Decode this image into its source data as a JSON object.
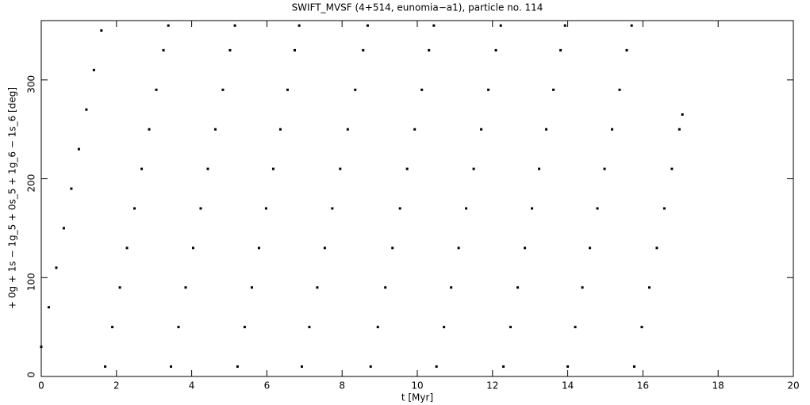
{
  "chart_data": {
    "type": "scatter",
    "title": "SWIFT_MVSF (4+514, eunomia−a1), particle no. 114",
    "x_label": "t [Myr]",
    "y_label": "+ 0g + 1s − 1g_5 + 0s_5 + 1g_6 − 1s_6 [deg]",
    "color": "#000000",
    "xlim": [
      0,
      20
    ],
    "ylim": [
      0,
      360
    ],
    "xticks": [
      0,
      2,
      4,
      6,
      8,
      10,
      12,
      14,
      16,
      18,
      20
    ],
    "yticks": [
      0,
      100,
      200,
      300
    ],
    "x": [
      0.0,
      0.2,
      0.4,
      0.6,
      0.8,
      1.0,
      1.2,
      1.4,
      1.6,
      1.7,
      1.89,
      2.09,
      2.28,
      2.48,
      2.67,
      2.87,
      3.06,
      3.25,
      3.38,
      3.45,
      3.65,
      3.84,
      4.04,
      4.24,
      4.43,
      4.63,
      4.83,
      5.02,
      5.15,
      5.22,
      5.41,
      5.6,
      5.79,
      5.98,
      6.17,
      6.36,
      6.55,
      6.74,
      6.86,
      6.93,
      7.13,
      7.34,
      7.54,
      7.74,
      7.95,
      8.15,
      8.35,
      8.56,
      8.68,
      8.76,
      8.95,
      9.15,
      9.34,
      9.54,
      9.73,
      9.93,
      10.12,
      10.31,
      10.44,
      10.51,
      10.71,
      10.9,
      11.1,
      11.3,
      11.5,
      11.7,
      11.89,
      12.09,
      12.22,
      12.29,
      12.48,
      12.67,
      12.86,
      13.05,
      13.24,
      13.43,
      13.62,
      13.81,
      13.93,
      14.0,
      14.2,
      14.39,
      14.59,
      14.79,
      14.98,
      15.18,
      15.38,
      15.57,
      15.7,
      15.77,
      15.97,
      16.17,
      16.37,
      16.57,
      16.77,
      16.97,
      17.05
    ],
    "y": [
      30,
      70,
      110,
      150,
      190,
      230,
      270,
      310,
      350,
      10,
      50,
      90,
      130,
      170,
      210,
      250,
      290,
      330,
      355,
      10,
      50,
      90,
      130,
      170,
      210,
      250,
      290,
      330,
      355,
      10,
      50,
      90,
      130,
      170,
      210,
      250,
      290,
      330,
      355,
      10,
      50,
      90,
      130,
      170,
      210,
      250,
      290,
      330,
      355,
      10,
      50,
      90,
      130,
      170,
      210,
      250,
      290,
      330,
      355,
      10,
      50,
      90,
      130,
      170,
      210,
      250,
      290,
      330,
      355,
      10,
      50,
      90,
      130,
      170,
      210,
      250,
      290,
      330,
      355,
      10,
      50,
      90,
      130,
      170,
      210,
      250,
      290,
      330,
      355,
      10,
      50,
      90,
      130,
      170,
      210,
      250,
      265
    ]
  }
}
